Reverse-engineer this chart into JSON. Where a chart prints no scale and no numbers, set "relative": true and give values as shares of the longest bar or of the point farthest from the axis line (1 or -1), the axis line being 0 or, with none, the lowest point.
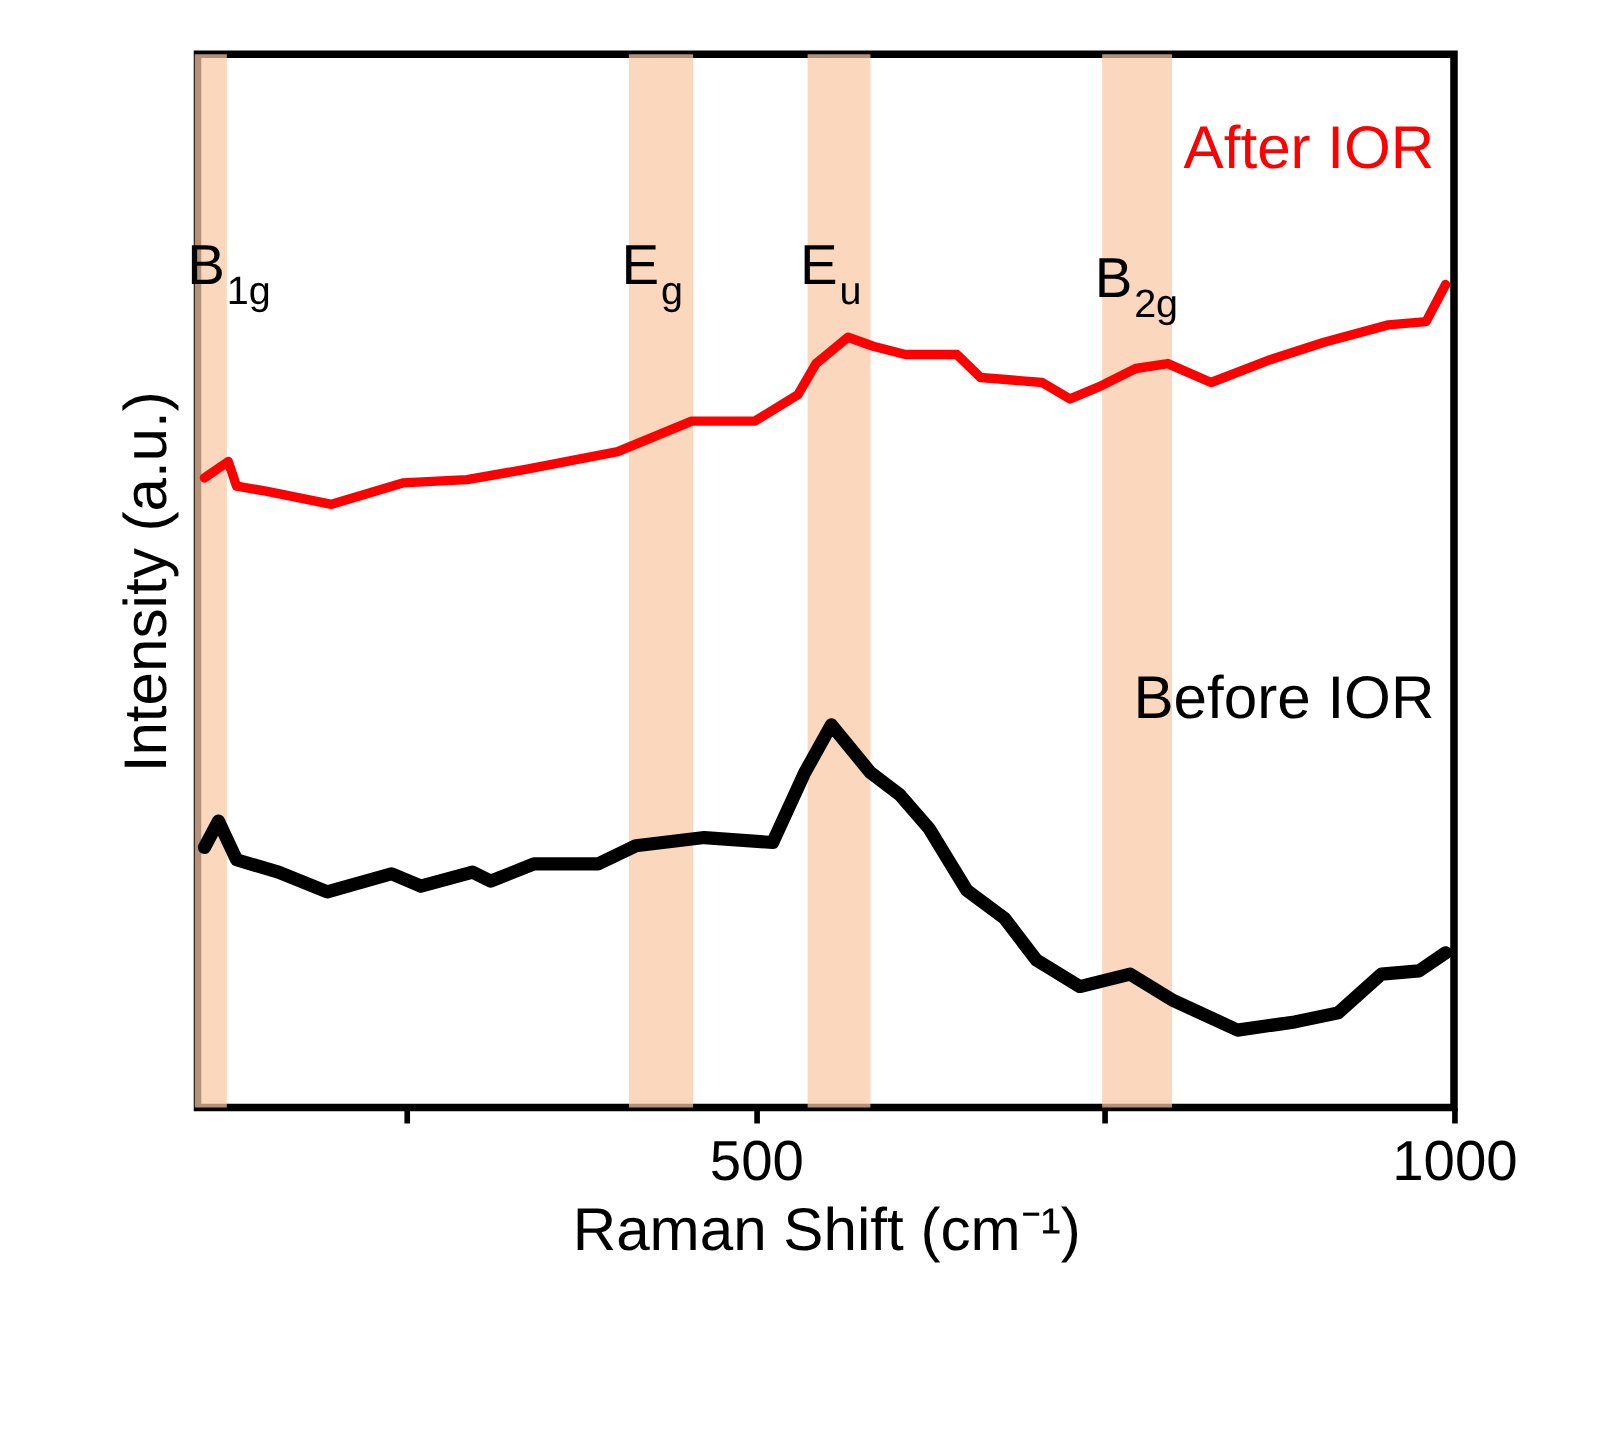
{
  "chart_data": {
    "type": "line",
    "relative": true,
    "xlabel": "Raman Shift (cm⁻¹)",
    "ylabel": "Intensity (a.u.)",
    "xlim": [
      100,
      1000
    ],
    "xticks": [
      {
        "value": 250,
        "label": null
      },
      500,
      {
        "value": 750,
        "label": null
      },
      1000
    ],
    "series": [
      {
        "name": "After IOR",
        "color": "#ff0000",
        "x": [
          105,
          122,
          128,
          149,
          196,
          247,
          293,
          337,
          401,
          454,
          499,
          530,
          543,
          566,
          584,
          607,
          644,
          661,
          705,
          725,
          746,
          772,
          795,
          826,
          867,
          907,
          953,
          980,
          994
        ],
        "values": [
          0.765,
          0.785,
          0.755,
          0.749,
          0.733,
          0.759,
          0.763,
          0.776,
          0.797,
          0.834,
          0.834,
          0.866,
          0.904,
          0.936,
          0.925,
          0.915,
          0.915,
          0.887,
          0.881,
          0.861,
          0.876,
          0.898,
          0.904,
          0.881,
          0.908,
          0.93,
          0.951,
          0.955,
          1.0
        ]
      },
      {
        "name": "Before IOR",
        "color": "#000000",
        "x": [
          105,
          115,
          128,
          158,
          193,
          239,
          260,
          297,
          310,
          341,
          387,
          414,
          463,
          512,
          535,
          554,
          582,
          603,
          624,
          651,
          678,
          701,
          732,
          768,
          799,
          845,
          886,
          917,
          948,
          975,
          994
        ],
        "values": [
          0.316,
          0.348,
          0.301,
          0.286,
          0.262,
          0.284,
          0.269,
          0.286,
          0.275,
          0.296,
          0.296,
          0.318,
          0.328,
          0.322,
          0.407,
          0.465,
          0.407,
          0.38,
          0.339,
          0.264,
          0.23,
          0.179,
          0.147,
          0.162,
          0.13,
          0.094,
          0.104,
          0.115,
          0.162,
          0.166,
          0.188
        ]
      }
    ],
    "bands": [
      {
        "axis": "x",
        "from": 98,
        "to": 121,
        "color": "#f8c8a4"
      },
      {
        "axis": "x",
        "from": 409,
        "to": 455,
        "color": "#f8c8a4"
      },
      {
        "axis": "x",
        "from": 537,
        "to": 582,
        "color": "#f8c8a4"
      },
      {
        "axis": "x",
        "from": 748,
        "to": 798,
        "color": "#f8c8a4"
      }
    ],
    "annotations": [
      "B$_{1g}$",
      "E$_{g}$",
      "E$_{u}$",
      "B$_{2g}$"
    ]
  }
}
